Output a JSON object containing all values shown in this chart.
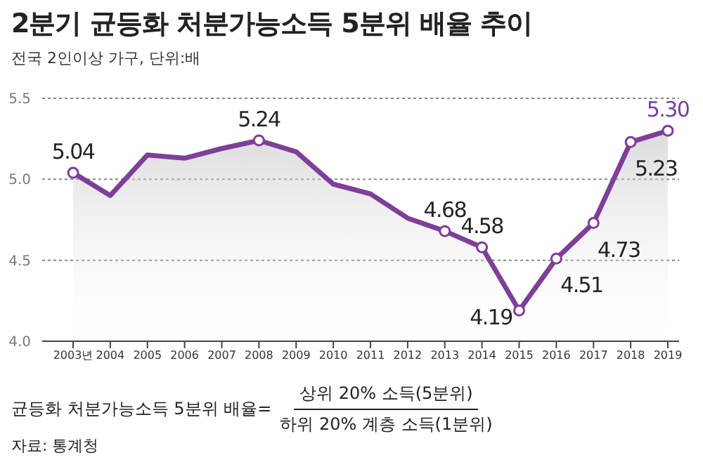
{
  "chart_data": {
    "type": "area",
    "title": "2분기 균등화 처분가능소득 5분위 배율 추이",
    "subtitle": "전국 2인이상 가구, 단위:배",
    "categories": [
      "2003년",
      "2004",
      "2005",
      "2006",
      "2007",
      "2008",
      "2009",
      "2010",
      "2011",
      "2012",
      "2013",
      "2014",
      "2015",
      "2016",
      "2017",
      "2018",
      "2019"
    ],
    "series": [
      {
        "color": "#7e3f98",
        "values": [
          5.04,
          4.9,
          5.15,
          5.13,
          5.19,
          5.24,
          5.17,
          4.97,
          4.91,
          4.76,
          4.68,
          4.58,
          4.19,
          4.51,
          4.73,
          5.23,
          5.3
        ],
        "value_labels": [
          "5.04",
          null,
          null,
          null,
          null,
          "5.24",
          null,
          null,
          null,
          null,
          "4.68",
          "4.58",
          "4.19",
          "4.51",
          "4.73",
          "5.23",
          "5.30"
        ]
      }
    ],
    "ylim": [
      4.0,
      5.5
    ],
    "yticks": [
      {
        "value": 4.0,
        "label": "4.0"
      },
      {
        "value": 4.5,
        "label": "4.5"
      },
      {
        "value": 5.0,
        "label": "5.0"
      },
      {
        "value": 5.5,
        "label": "5.5"
      }
    ],
    "grid": "y",
    "marker": "circle",
    "legend": false,
    "annotations": [
      "균등화 처분가능소득 5분위 배율=",
      "상위 20% 소득(5분위)",
      "하위 20% 계층 소득(1분위)",
      "자료: 통계청"
    ]
  }
}
